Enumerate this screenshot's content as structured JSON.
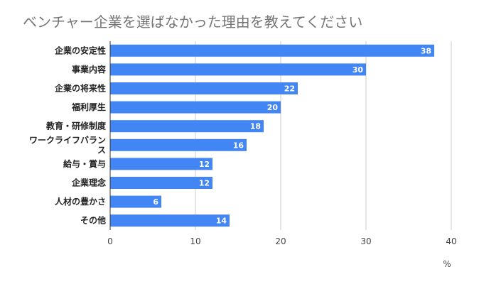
{
  "chart_data": {
    "type": "bar",
    "orientation": "horizontal",
    "title": "ベンチャー企業を選ばなかった理由を教えてください",
    "xlabel": "%",
    "ylabel": "",
    "categories": [
      "企業の安定性",
      "事業内容",
      "企業の将来性",
      "福利厚生",
      "教育・研修制度",
      "ワークライフバランス",
      "給与・賞与",
      "企業理念",
      "人材の豊かさ",
      "その他"
    ],
    "values": [
      38,
      30,
      22,
      20,
      18,
      16,
      12,
      12,
      6,
      14
    ],
    "xlim": [
      0,
      40
    ],
    "x_ticks": [
      0,
      10,
      20,
      30,
      40
    ],
    "grid": true,
    "legend": "none",
    "colors": {
      "bar": "#4285f4",
      "grid": "#cccccc",
      "axis": "#333333"
    }
  }
}
